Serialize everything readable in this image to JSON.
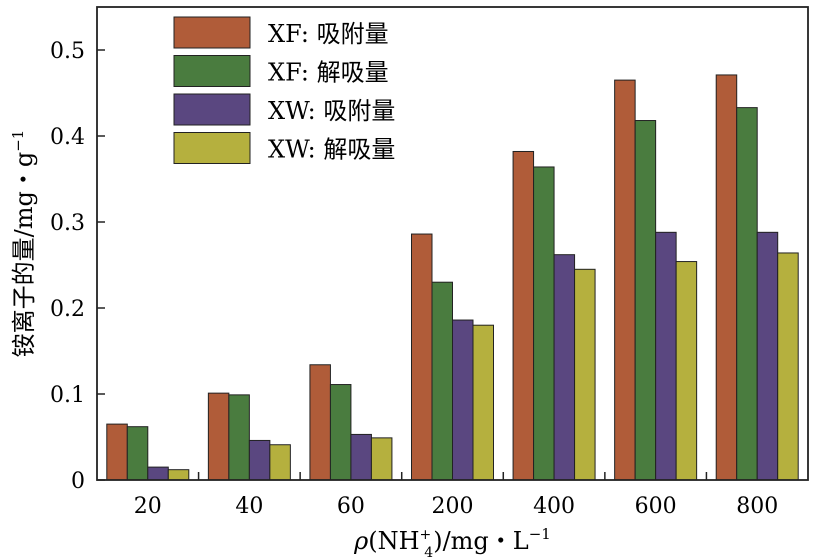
{
  "chart_data": {
    "type": "bar",
    "categories": [
      "20",
      "40",
      "60",
      "200",
      "400",
      "600",
      "800"
    ],
    "series": [
      {
        "name": "XF: 吸附量",
        "color": "#b05c39",
        "values": [
          0.065,
          0.101,
          0.134,
          0.286,
          0.382,
          0.465,
          0.471
        ]
      },
      {
        "name": "XF: 解吸量",
        "color": "#4a7c3f",
        "values": [
          0.062,
          0.099,
          0.111,
          0.23,
          0.364,
          0.418,
          0.433
        ]
      },
      {
        "name": "XW: 吸附量",
        "color": "#5a4780",
        "values": [
          0.015,
          0.046,
          0.053,
          0.186,
          0.262,
          0.288,
          0.288
        ]
      },
      {
        "name": "XW: 解吸量",
        "color": "#b5b03e",
        "values": [
          0.012,
          0.041,
          0.049,
          0.18,
          0.245,
          0.254,
          0.264
        ]
      }
    ],
    "xlabel": {
      "prefix": "ρ(NH",
      "sub": "4",
      "sup": "+",
      "suffix": ")/mg・L",
      "suffix_sup": "−1"
    },
    "ylabel": {
      "main": "铵离子的量/mg・g",
      "sup": "−1"
    },
    "ylim": [
      0,
      0.55
    ],
    "yticks": [
      0,
      0.1,
      0.2,
      0.3,
      0.4,
      0.5
    ],
    "ytick_labels": [
      "0",
      "0.1",
      "0.2",
      "0.3",
      "0.4",
      "0.5"
    ],
    "grid": false,
    "legend_position": "top-left"
  }
}
